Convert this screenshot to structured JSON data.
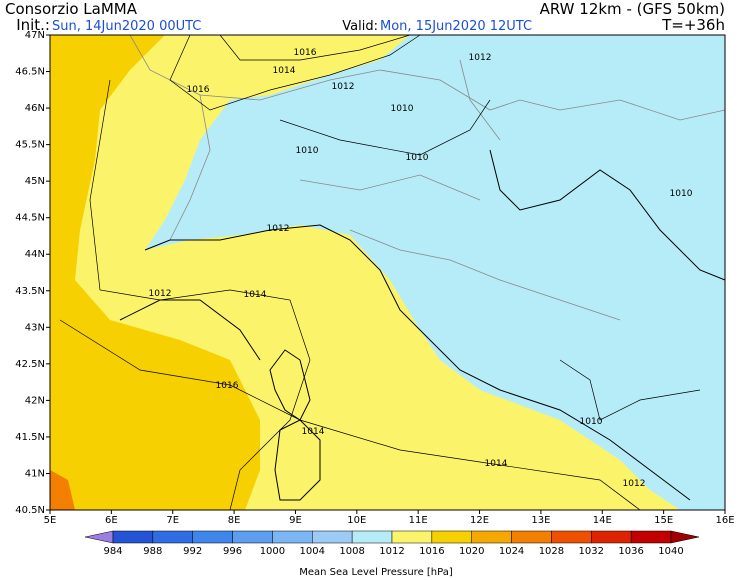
{
  "header": {
    "title": "Consorzio LaMMA",
    "model": "ARW 12km - (GFS 50km)",
    "init_label": "Init.:",
    "init_value": "Sun, 14Jun2020 00UTC",
    "valid_label": "Valid:",
    "valid_value": "Mon, 15Jun2020 12UTC",
    "lead": "T=+36h"
  },
  "map": {
    "lat_labels": [
      "47N",
      "46.5N",
      "46N",
      "45.5N",
      "45N",
      "44.5N",
      "44N",
      "43.5N",
      "43N",
      "42.5N",
      "42N",
      "41.5N",
      "41N",
      "40.5N"
    ],
    "lon_labels": [
      "5E",
      "6E",
      "7E",
      "8E",
      "9E",
      "10E",
      "11E",
      "12E",
      "13E",
      "14E",
      "15E",
      "16E"
    ],
    "isobar_labels": [
      1016,
      1014,
      1016,
      1012,
      1012,
      1010,
      1010,
      1010,
      1010,
      1012,
      1014,
      1012,
      1016,
      1014,
      1014,
      1010,
      1012
    ]
  },
  "colorbar": {
    "levels": [
      984,
      988,
      992,
      996,
      1000,
      1004,
      1008,
      1012,
      1016,
      1020,
      1024,
      1028,
      1032,
      1036,
      1040
    ],
    "colors": [
      "#9b7ee0",
      "#2453d6",
      "#2e6de4",
      "#3f86ec",
      "#5b9ef0",
      "#7bb5f3",
      "#9ccbf5",
      "#b6ecf8",
      "#fbf46a",
      "#f6d000",
      "#f5a900",
      "#f37f00",
      "#ee5000",
      "#de2300",
      "#c20000",
      "#a00000"
    ],
    "title": "Mean Sea Level Pressure [hPa]"
  }
}
